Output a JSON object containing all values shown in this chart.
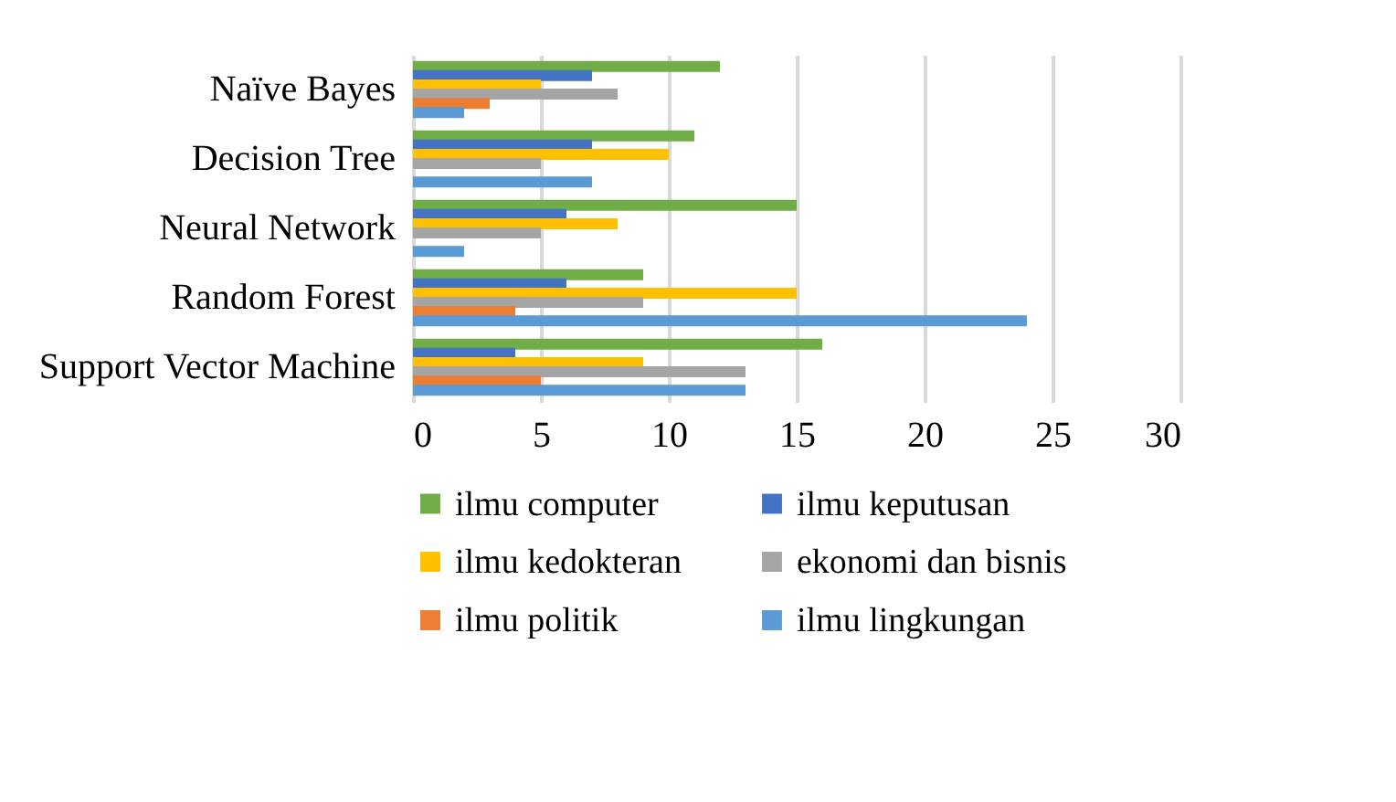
{
  "chart_data": {
    "type": "bar",
    "orientation": "horizontal",
    "categories": [
      "Naïve Bayes",
      "Decision Tree",
      "Neural Network",
      "Random Forest",
      "Support Vector Machine"
    ],
    "series": [
      {
        "name": "ilmu computer",
        "color": "#70ad47",
        "values": [
          12,
          11,
          15,
          9,
          16
        ]
      },
      {
        "name": "ilmu keputusan",
        "color": "#4472c4",
        "values": [
          7,
          7,
          6,
          6,
          4
        ]
      },
      {
        "name": "ilmu kedokteran",
        "color": "#ffc000",
        "values": [
          5,
          10,
          8,
          15,
          9
        ]
      },
      {
        "name": "ekonomi dan bisnis",
        "color": "#a5a5a5",
        "values": [
          8,
          5,
          5,
          9,
          13
        ]
      },
      {
        "name": "ilmu politik",
        "color": "#ed7d31",
        "values": [
          3,
          0,
          0,
          4,
          5
        ]
      },
      {
        "name": "ilmu lingkungan",
        "color": "#5b9bd5",
        "values": [
          2,
          7,
          2,
          24,
          13
        ]
      }
    ],
    "xlim": [
      0,
      30
    ],
    "xticks": [
      0,
      5,
      10,
      15,
      20,
      25,
      30
    ],
    "grid": "x",
    "legend": "bottom"
  }
}
